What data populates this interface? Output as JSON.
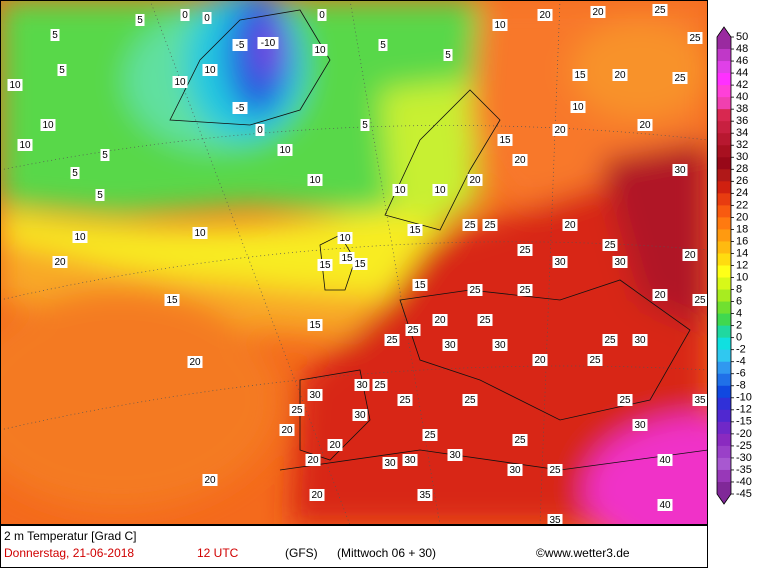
{
  "map": {
    "labels": [
      5,
      5,
      0,
      0,
      -5,
      -10,
      10,
      0,
      5,
      5,
      10,
      20,
      20,
      25,
      25,
      15,
      20,
      10,
      25,
      20,
      20,
      20,
      15,
      25,
      20,
      25,
      30,
      20,
      30,
      25,
      25,
      40,
      40,
      30,
      25,
      25,
      25,
      25,
      30,
      30,
      30,
      30,
      35,
      35,
      30,
      25,
      25,
      30,
      30,
      25,
      20,
      20,
      20,
      20,
      20,
      20,
      15,
      15,
      10,
      10,
      20,
      10,
      15,
      15,
      15,
      15,
      15,
      10,
      10,
      10,
      10,
      5,
      5,
      5,
      10,
      10,
      10,
      5,
      10,
      10,
      -5,
      0,
      5,
      20,
      25,
      25,
      25,
      30,
      30,
      25,
      20,
      25,
      25,
      30,
      25,
      20,
      25,
      30,
      20,
      25,
      35
    ],
    "legend": {
      "ticks": [
        50,
        48,
        46,
        44,
        42,
        40,
        38,
        36,
        34,
        32,
        30,
        28,
        26,
        24,
        22,
        20,
        18,
        16,
        14,
        12,
        10,
        8,
        6,
        4,
        2,
        0,
        -2,
        -4,
        -6,
        -8,
        -10,
        -12,
        -15,
        -20,
        -25,
        -30,
        -35,
        -40,
        -45
      ],
      "colors": [
        "#9a2aa0",
        "#c038c8",
        "#e040e8",
        "#ff30ff",
        "#ff40d8",
        "#f040b0",
        "#d82850",
        "#c82040",
        "#b81830",
        "#a81020",
        "#980818",
        "#b01818",
        "#d02010",
        "#e83c10",
        "#f85a10",
        "#ff7a10",
        "#ff9a10",
        "#ffba10",
        "#ffdc10",
        "#ffff18",
        "#d8f818",
        "#a8ec20",
        "#70e030",
        "#40d850",
        "#20d8a0",
        "#10e0e0",
        "#30c8f0",
        "#3098f0",
        "#2070e8",
        "#1048e0",
        "#3030d8",
        "#5028d0",
        "#7028c8",
        "#8a2ac0",
        "#9a40c8",
        "#a858d0",
        "#9838b8",
        "#802898"
      ]
    },
    "footer": {
      "variable": "2 m Temperatur [Grad C]",
      "date": "Donnerstag, 21-06-2018",
      "time": "12 UTC",
      "model": "(GFS)",
      "run": "(Mittwoch 06 + 30)",
      "credit": "©www.wetter3.de"
    }
  }
}
